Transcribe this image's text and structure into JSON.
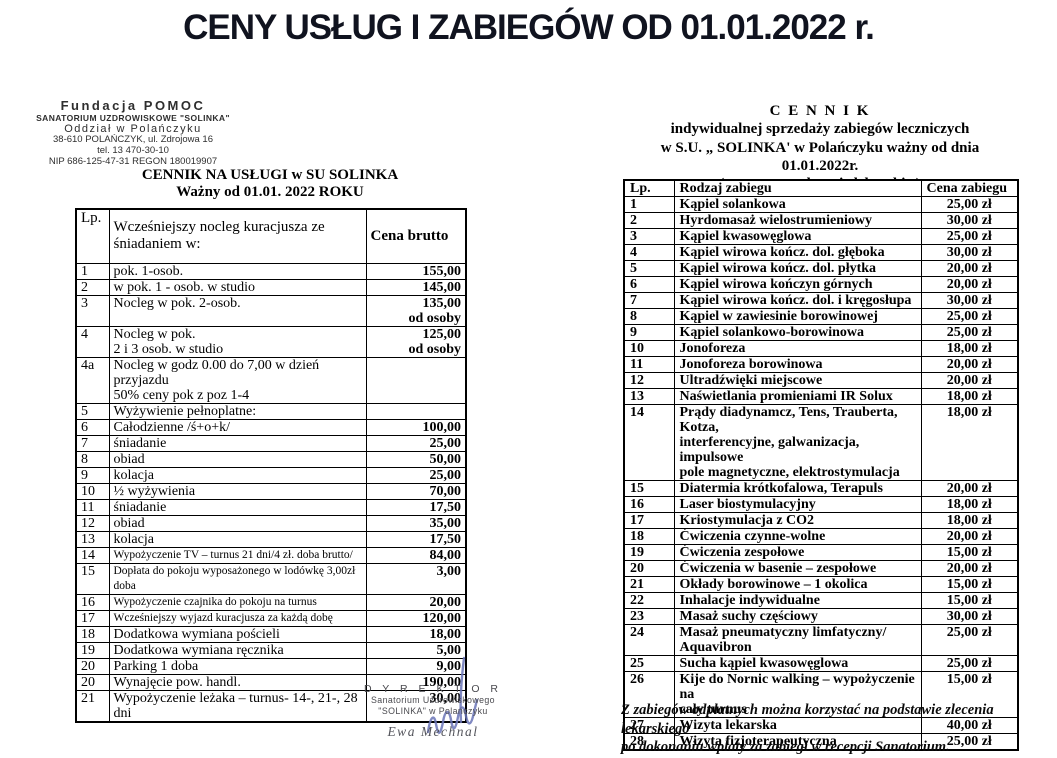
{
  "page_title": "CENY USŁUG I ZABIEGÓW OD 01.01.2022 r.",
  "colors": {
    "text": "#000000",
    "signature_ink": "#6a75b8",
    "stamp_gray": "#2e2e2e"
  },
  "stamp": {
    "lines": [
      "Fundacja POMOC",
      "SANATORIUM UZDROWISKOWE \"SOLINKA\"",
      "Oddział w Polańczyku",
      "38-610 POLAŃCZYK, ul. Zdrojowa 16",
      "tel. 13 470-30-10",
      "NIP 686-125-47-31 REGON 180019907"
    ]
  },
  "left_table": {
    "title1": "CENNIK NA USŁUGI w SU SOLINKA",
    "title2": "Ważny od 01.01. 2022 ROKU",
    "headers": {
      "lp": "Lp.",
      "desc": "Wcześniejszy nocleg kuracjusza ze śniadaniem w:",
      "price": "Cena brutto"
    },
    "rows": [
      {
        "lp": "1",
        "desc": "pok. 1-osob.",
        "price": "155,00"
      },
      {
        "lp": "2",
        "desc": "w pok. 1 - osob. w studio",
        "price": "145,00"
      },
      {
        "lp": "3",
        "desc": "Nocleg w pok. 2-osob.",
        "price": "135,00",
        "price2": "od osoby"
      },
      {
        "lp": "4",
        "desc": "Nocleg w pok.",
        "desc2": "2 i 3 osob. w studio",
        "price": "125,00",
        "price2": "od osoby"
      },
      {
        "lp": "4a",
        "desc": "Nocleg w godz 0.00 do 7,00 w dzień przyjazdu",
        "desc2": "50% ceny pok z poz 1-4",
        "price": ""
      },
      {
        "lp": "5",
        "desc": "Wyżywienie pełnoplatne:",
        "price": ""
      },
      {
        "lp": "6",
        "desc": "Całodzienne /ś+o+k/",
        "price": "100,00"
      },
      {
        "lp": "7",
        "desc": "śniadanie",
        "price": "25,00"
      },
      {
        "lp": "8",
        "desc": "obiad",
        "price": "50,00"
      },
      {
        "lp": "9",
        "desc": "kolacja",
        "price": "25,00"
      },
      {
        "lp": "10",
        "desc": "½ wyżywienia",
        "price": "70,00"
      },
      {
        "lp": "11",
        "desc": "śniadanie",
        "price": "17,50"
      },
      {
        "lp": "12",
        "desc": "obiad",
        "price": "35,00"
      },
      {
        "lp": "13",
        "desc": "kolacja",
        "price": "17,50"
      },
      {
        "lp": "14",
        "desc": "Wypożyczenie TV – turnus 21 dni/4 zł. doba brutto/",
        "price": "84,00",
        "small": true
      },
      {
        "lp": "15",
        "desc": "Dopłata do pokoju wyposażonego w lodówkę 3,00zł doba",
        "price": "3,00",
        "small": true
      },
      {
        "lp": "16",
        "desc": "Wypożyczenie czajnika do pokoju na turnus",
        "price": "20,00",
        "small": true
      },
      {
        "lp": "17",
        "desc": "Wcześniejszy wyjazd kuracjusza za każdą dobę",
        "price": "120,00",
        "small": true
      },
      {
        "lp": "18",
        "desc": "Dodatkowa wymiana pościeli",
        "price": "18,00"
      },
      {
        "lp": "19",
        "desc": "Dodatkowa wymiana ręcznika",
        "price": "5,00"
      },
      {
        "lp": "20",
        "desc": "Parking 1 doba",
        "price": "9,00"
      },
      {
        "lp": "20",
        "desc": "Wynajęcie pow. handl.",
        "price": "190,00"
      },
      {
        "lp": "21",
        "desc": "Wypożyczenie leżaka – turnus- 14-, 21-, 28 dni",
        "price": "30,00"
      }
    ]
  },
  "signature": {
    "line1": "D Y R E K T O R",
    "line2": "Sanatorium Uzdrowiskowego",
    "line3": "\"SOLINKA\" w Polańczyku",
    "name": "Ewa Mechnal"
  },
  "right_table": {
    "title1": "C E N N I K",
    "title2": "indywidualnej sprzedaży zabiegów leczniczych",
    "title3": "w S.U. „ SOLINKA'  w Polańczyku ważny od dnia 01.01.2022r.",
    "title4": "( wymagane zlecenie lekarskie )",
    "headers": {
      "lp": "Lp.",
      "desc": "Rodzaj zabiegu",
      "price": "Cena zabiegu"
    },
    "rows": [
      {
        "lp": "1",
        "desc": "Kąpiel solankowa",
        "price": "25,00 zł"
      },
      {
        "lp": "2",
        "desc": "Hyrdomasaż wielostrumieniowy",
        "price": "30,00 zł"
      },
      {
        "lp": "3",
        "desc": "Kąpiel kwasowęglowa",
        "price": "25,00 zł"
      },
      {
        "lp": "4",
        "desc": "Kąpiel wirowa kończ. dol. głęboka",
        "price": "30,00 zł"
      },
      {
        "lp": "5",
        "desc": "Kąpiel wirowa kończ. dol. płytka",
        "price": "20,00 zł"
      },
      {
        "lp": "6",
        "desc": "Kąpiel wirowa kończyn górnych",
        "price": "20,00 zł"
      },
      {
        "lp": "7",
        "desc": "Kąpiel wirowa kończ. dol. i kręgosłupa",
        "price": "30,00 zł"
      },
      {
        "lp": "8",
        "desc": "Kąpiel w zawiesinie borowinowej",
        "price": "25,00 zł"
      },
      {
        "lp": "9",
        "desc": "Kąpiel solankowo-borowinowa",
        "price": "25,00 zł"
      },
      {
        "lp": "10",
        "desc": "Jonoforeza",
        "price": "18,00 zł"
      },
      {
        "lp": "11",
        "desc": "Jonoforeza borowinowa",
        "price": "20,00 zł"
      },
      {
        "lp": "12",
        "desc": "Ultradźwięki miejscowe",
        "price": "20,00 zł"
      },
      {
        "lp": "13",
        "desc": "Naświetlania promieniami IR Solux",
        "price": "18,00 zł"
      },
      {
        "lp": "14",
        "desc": "Prądy diadynamcz, Tens, Trauberta, Kotza,",
        "desc2": "interferencyjne, galwanizacja, impulsowe",
        "desc3": "pole magnetyczne, elektrostymulacja",
        "price": "18,00 zł"
      },
      {
        "lp": "15",
        "desc": "Diatermia krótkofalowa, Terapuls",
        "price": "20,00 zł"
      },
      {
        "lp": "16",
        "desc": "Laser biostymulacyjny",
        "price": "18,00 zł"
      },
      {
        "lp": "17",
        "desc": "Kriostymulacja z CO2",
        "price": "18,00 zł"
      },
      {
        "lp": "18",
        "desc": "Ćwiczenia czynne-wolne",
        "price": "20,00 zł"
      },
      {
        "lp": "19",
        "desc": "Ćwiczenia  zespołowe",
        "price": "15,00 zł"
      },
      {
        "lp": "20",
        "desc": "Ćwiczenia w basenie – zespołowe",
        "price": "20,00 zł"
      },
      {
        "lp": "21",
        "desc": "Okłady borowinowe – 1 okolica",
        "price": "15,00 zł"
      },
      {
        "lp": "22",
        "desc": "Inhalacje indywidualne",
        "price": "15,00 zł"
      },
      {
        "lp": "23",
        "desc": "Masaż suchy częściowy",
        "price": "30,00 zł"
      },
      {
        "lp": "24",
        "desc": "Masaż pneumatyczny limfatyczny/",
        "desc2": "Aquavibron",
        "price": "25,00 zł"
      },
      {
        "lp": "25",
        "desc": "Sucha kąpiel kwasowęglowa",
        "price": "25,00 zł"
      },
      {
        "lp": "26",
        "desc": "Kije do Nornic walking – wypożyczenie na",
        "desc2": "cały turnus",
        "price": "15,00 zł"
      },
      {
        "lp": "27",
        "desc": "Wizyta lekarska",
        "price": "40,00 zł"
      },
      {
        "lp": "28",
        "desc": "Wizyta fizjoterapeutyczna",
        "price": "25,00 zł"
      }
    ]
  },
  "footer_note": {
    "line1": "Z zabiegów odplatnych można korzystać na podstawie zlecenia lekarskiego",
    "line2": "po dokonaniu wplaty za zabiegi w recepcji Sanatorium."
  }
}
